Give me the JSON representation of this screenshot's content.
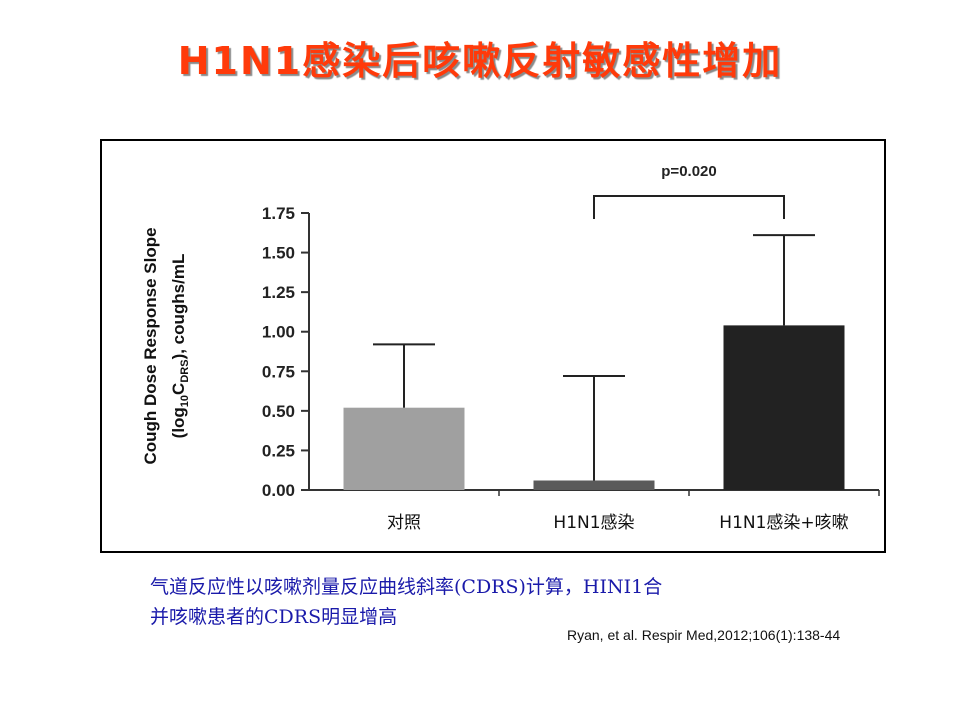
{
  "slide": {
    "title": "H1N1感染后咳嗽反射敏感性增加",
    "caption_line1": "气道反应性以咳嗽剂量反应曲线斜率(CDRS)计算，HINI1合",
    "caption_line2": "并咳嗽患者的CDRS明显增高",
    "citation": "Ryan, et al. Respir Med,2012;106(1):138-44"
  },
  "chart_data": {
    "type": "bar",
    "categories": [
      "对照",
      "H1N1感染",
      "H1N1感染+咳嗽"
    ],
    "values": [
      0.52,
      0.06,
      1.04
    ],
    "error_upper": [
      0.92,
      0.72,
      1.61
    ],
    "bar_colors": [
      "#a0a0a0",
      "#5a5a5a",
      "#222222"
    ],
    "ylabel_line1": "Cough Dose Response Slope",
    "ylabel_line2_prefix": "(log",
    "ylabel_line2_sub1": "10",
    "ylabel_line2_mid": "C",
    "ylabel_line2_sub2": "DRS",
    "ylabel_line2_suffix": "), coughs/mL",
    "ylim": [
      0,
      1.75
    ],
    "yticks": [
      0.0,
      0.25,
      0.5,
      0.75,
      1.0,
      1.25,
      1.5,
      1.75
    ],
    "ytick_labels": [
      "0.00",
      "0.25",
      "0.50",
      "0.75",
      "1.00",
      "1.25",
      "1.50",
      "1.75"
    ],
    "annotation": {
      "text": "p=0.020",
      "between": [
        1,
        2
      ]
    },
    "grid": false,
    "legend": "none"
  }
}
